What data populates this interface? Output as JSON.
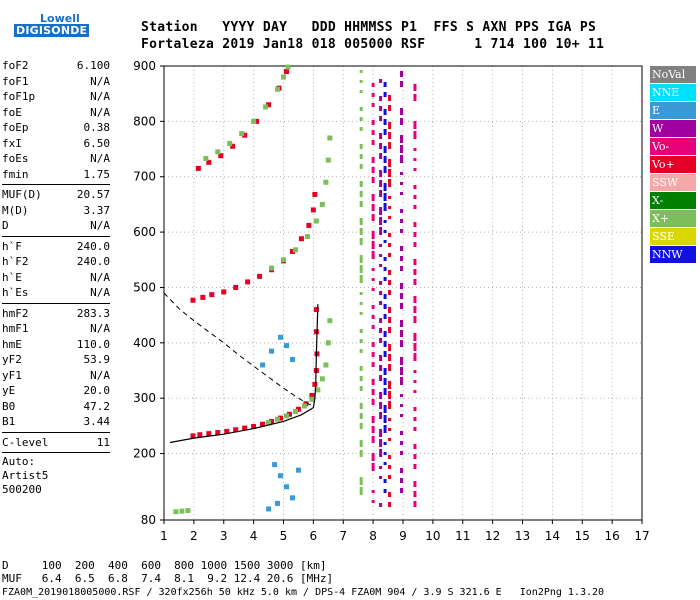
{
  "logo": {
    "line1": "Lowell",
    "line2": "DIGISONDE"
  },
  "header": {
    "line1": "Station   YYYY DAY   DDD HHMMSS P1  FFS S AXN PPS IGA PS",
    "line2": "Fortaleza 2019 Jan18 018 005000 RSF      1 714 100 10+ 11"
  },
  "params": {
    "group1": [
      {
        "name": "foF2",
        "value": "6.100"
      },
      {
        "name": "foF1",
        "value": "N/A"
      },
      {
        "name": "foF1p",
        "value": "N/A"
      },
      {
        "name": "foE",
        "value": "N/A"
      },
      {
        "name": "foEp",
        "value": "0.38"
      },
      {
        "name": "fxI",
        "value": "6.50"
      },
      {
        "name": "foEs",
        "value": "N/A"
      },
      {
        "name": "fmin",
        "value": "1.75"
      }
    ],
    "group2": [
      {
        "name": "MUF(D)",
        "value": "20.57"
      },
      {
        "name": "M(D)",
        "value": "3.37"
      },
      {
        "name": "D",
        "value": "N/A"
      }
    ],
    "group3": [
      {
        "name": "h`F",
        "value": "240.0"
      },
      {
        "name": "h`F2",
        "value": "240.0"
      },
      {
        "name": "h`E",
        "value": "N/A"
      },
      {
        "name": "h`Es",
        "value": "N/A"
      }
    ],
    "group4": [
      {
        "name": "hmF2",
        "value": "283.3"
      },
      {
        "name": "hmF1",
        "value": "N/A"
      },
      {
        "name": "hmE",
        "value": "110.0"
      },
      {
        "name": "yF2",
        "value": "53.9"
      },
      {
        "name": "yF1",
        "value": "N/A"
      },
      {
        "name": "yE",
        "value": "20.0"
      },
      {
        "name": "B0",
        "value": "47.2"
      },
      {
        "name": "B1",
        "value": "3.44"
      }
    ],
    "group5": [
      {
        "name": "C-level",
        "value": "11"
      }
    ],
    "auto": [
      "Auto:",
      "Artist5",
      "500200"
    ]
  },
  "legend": [
    {
      "label": "NoVal",
      "color": "#808080"
    },
    {
      "label": "NNE",
      "color": "#00e0ff"
    },
    {
      "label": "E",
      "color": "#3a9ad8"
    },
    {
      "label": "W",
      "color": "#a000a0"
    },
    {
      "label": "Vo-",
      "color": "#e8007a"
    },
    {
      "label": "Vo+",
      "color": "#e60026"
    },
    {
      "label": "SSW",
      "color": "#f4a8a8"
    },
    {
      "label": "X-",
      "color": "#008000"
    },
    {
      "label": "X+",
      "color": "#7cbf5a"
    },
    {
      "label": "SSE",
      "color": "#d8d800"
    },
    {
      "label": "NNW",
      "color": "#1010e0"
    }
  ],
  "bottom": {
    "d_line": "D     100  200  400  600  800 1000 1500 3000 [km]",
    "muf_line": "MUF   6.4  6.5  6.8  7.4  8.1  9.2 12.4 20.6 [MHz]",
    "footer": "FZA0M_2019018005000.RSF / 320fx256h 50 kHz 5.0 km / DPS-4 FZA0M 904 / 3.9 S 321.6 E   Ion2Png 1.3.20"
  },
  "chart_data": {
    "type": "scatter",
    "xlim": [
      1,
      17
    ],
    "ylim": [
      80,
      900
    ],
    "x_ticks": [
      1,
      2,
      3,
      4,
      5,
      6,
      7,
      8,
      9,
      10,
      11,
      12,
      13,
      14,
      15,
      16,
      17
    ],
    "y_ticks": [
      80,
      200,
      300,
      400,
      500,
      600,
      700,
      800,
      900
    ],
    "grid": "dotted",
    "series": [
      {
        "name": "O-trace 1",
        "color": "#e60026",
        "points": [
          [
            1.97,
            232
          ],
          [
            2.2,
            234
          ],
          [
            2.5,
            236
          ],
          [
            2.8,
            238
          ],
          [
            3.1,
            240
          ],
          [
            3.4,
            243
          ],
          [
            3.7,
            246
          ],
          [
            4.0,
            249
          ],
          [
            4.3,
            253
          ],
          [
            4.6,
            258
          ],
          [
            4.9,
            264
          ],
          [
            5.2,
            271
          ],
          [
            5.5,
            280
          ],
          [
            5.75,
            290
          ],
          [
            5.95,
            305
          ],
          [
            6.05,
            325
          ],
          [
            6.1,
            350
          ],
          [
            6.12,
            380
          ],
          [
            6.1,
            420
          ],
          [
            6.1,
            460
          ]
        ]
      },
      {
        "name": "X-trace 1",
        "color": "#7cbf5a",
        "points": [
          [
            4.5,
            256
          ],
          [
            4.8,
            262
          ],
          [
            5.1,
            268
          ],
          [
            5.4,
            276
          ],
          [
            5.7,
            286
          ],
          [
            5.95,
            298
          ],
          [
            6.15,
            315
          ],
          [
            6.3,
            335
          ],
          [
            6.42,
            360
          ],
          [
            6.5,
            400
          ],
          [
            6.55,
            440
          ]
        ]
      },
      {
        "name": "O-trace 2",
        "color": "#e60026",
        "points": [
          [
            1.97,
            477
          ],
          [
            2.3,
            482
          ],
          [
            2.6,
            487
          ],
          [
            3.0,
            492
          ],
          [
            3.4,
            500
          ],
          [
            3.8,
            510
          ],
          [
            4.2,
            520
          ],
          [
            4.6,
            532
          ],
          [
            5.0,
            548
          ],
          [
            5.3,
            565
          ],
          [
            5.6,
            588
          ],
          [
            5.85,
            612
          ],
          [
            6.0,
            640
          ],
          [
            6.05,
            668
          ]
        ]
      },
      {
        "name": "X-trace 2",
        "color": "#7cbf5a",
        "points": [
          [
            4.6,
            535
          ],
          [
            5.0,
            550
          ],
          [
            5.4,
            568
          ],
          [
            5.8,
            592
          ],
          [
            6.1,
            620
          ],
          [
            6.3,
            650
          ],
          [
            6.42,
            690
          ],
          [
            6.5,
            730
          ],
          [
            6.55,
            770
          ]
        ]
      },
      {
        "name": "O-trace 3",
        "color": "#e60026",
        "points": [
          [
            2.15,
            715
          ],
          [
            2.5,
            726
          ],
          [
            2.9,
            738
          ],
          [
            3.3,
            755
          ],
          [
            3.7,
            775
          ],
          [
            4.1,
            800
          ],
          [
            4.5,
            830
          ],
          [
            4.85,
            860
          ],
          [
            5.1,
            890
          ]
        ]
      },
      {
        "name": "X-trace 3",
        "color": "#7cbf5a",
        "points": [
          [
            2.4,
            733
          ],
          [
            2.8,
            745
          ],
          [
            3.2,
            760
          ],
          [
            3.6,
            778
          ],
          [
            4.0,
            800
          ],
          [
            4.4,
            826
          ],
          [
            4.8,
            858
          ],
          [
            5.0,
            880
          ],
          [
            5.15,
            898
          ]
        ]
      },
      {
        "name": "E-echoes",
        "color": "#3a9ad8",
        "points": [
          [
            4.3,
            360
          ],
          [
            4.6,
            385
          ],
          [
            4.9,
            410
          ],
          [
            5.1,
            395
          ],
          [
            5.3,
            370
          ],
          [
            4.7,
            180
          ],
          [
            4.9,
            160
          ],
          [
            5.1,
            140
          ],
          [
            5.3,
            120
          ],
          [
            5.5,
            170
          ],
          [
            4.5,
            100
          ],
          [
            4.8,
            110
          ]
        ]
      },
      {
        "name": "Low echoes",
        "color": "#7cbf5a",
        "points": [
          [
            1.4,
            95
          ],
          [
            1.6,
            96
          ],
          [
            1.8,
            97
          ]
        ]
      }
    ],
    "profile": {
      "solid": [
        [
          1.2,
          220
        ],
        [
          2.0,
          228
        ],
        [
          3.0,
          235
        ],
        [
          4.0,
          245
        ],
        [
          5.0,
          258
        ],
        [
          5.6,
          270
        ],
        [
          6.0,
          283
        ],
        [
          6.05,
          300
        ],
        [
          6.08,
          330
        ],
        [
          6.1,
          380
        ],
        [
          6.12,
          420
        ],
        [
          6.15,
          470
        ]
      ],
      "dashed": [
        [
          1.0,
          490
        ],
        [
          1.5,
          462
        ],
        [
          2.0,
          440
        ],
        [
          2.5,
          420
        ],
        [
          3.0,
          400
        ],
        [
          3.5,
          378
        ],
        [
          4.0,
          358
        ],
        [
          4.5,
          338
        ],
        [
          5.0,
          318
        ],
        [
          5.5,
          300
        ],
        [
          6.0,
          285
        ]
      ]
    },
    "vertical_bands": [
      {
        "x": 7.6,
        "color": "#7cbf5a"
      },
      {
        "x": 8.0,
        "color": "#e8007a"
      },
      {
        "x": 8.25,
        "color": "#a000a0"
      },
      {
        "x": 8.4,
        "color": "#1010e0"
      },
      {
        "x": 8.55,
        "color": "#e60026"
      },
      {
        "x": 8.95,
        "color": "#a000a0"
      },
      {
        "x": 9.4,
        "color": "#e8007a"
      }
    ]
  }
}
